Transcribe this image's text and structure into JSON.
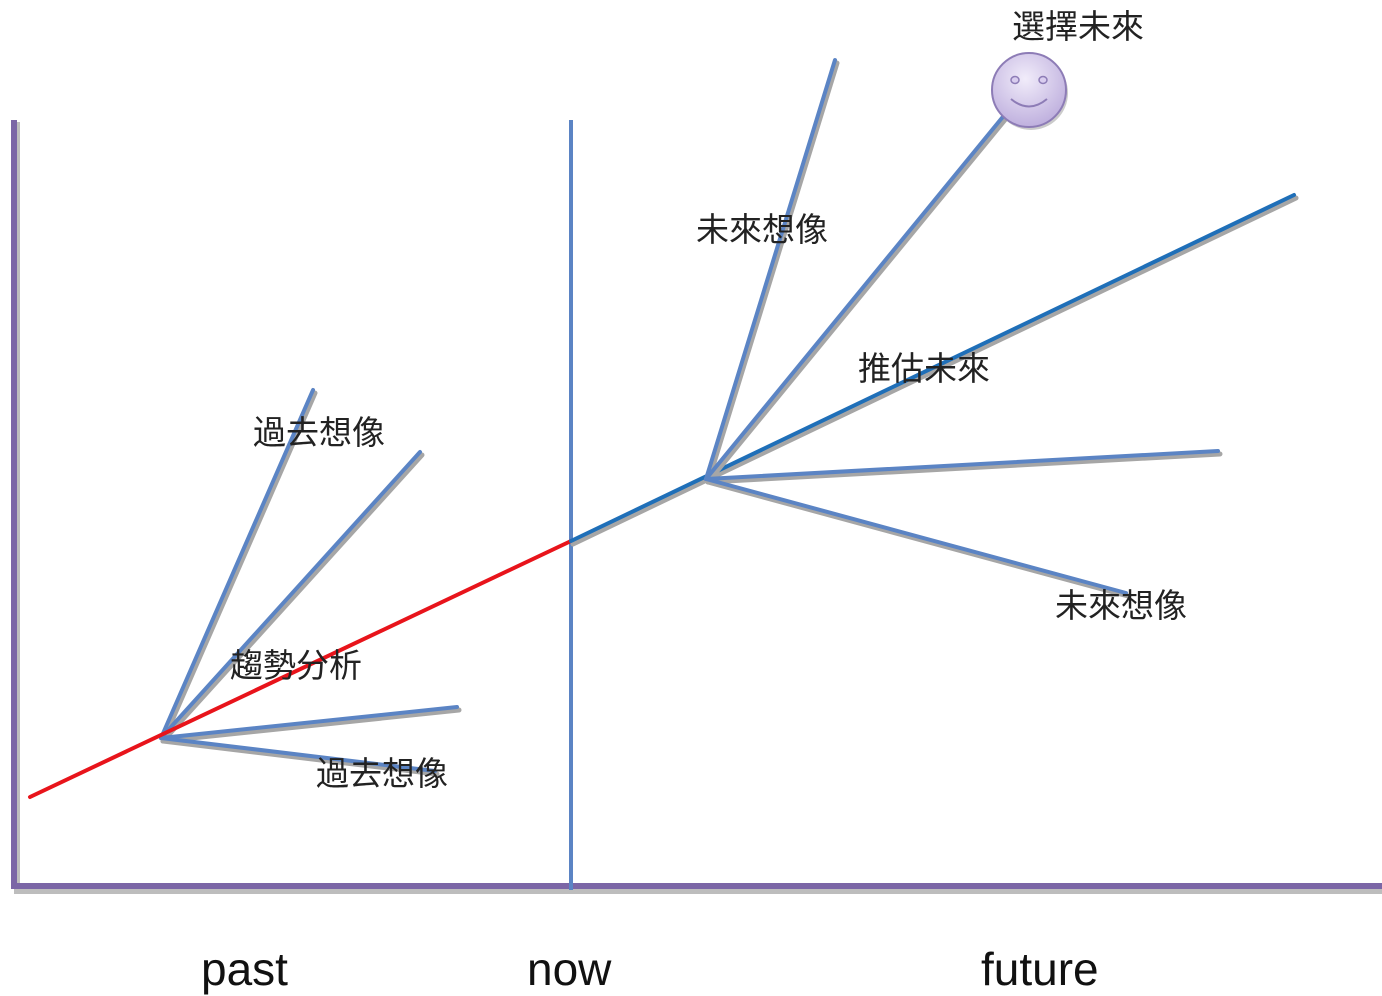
{
  "time_axis": {
    "past": "past",
    "now": "now",
    "future": "future"
  },
  "labels": {
    "chosen_future": "選擇未來",
    "future_image_top": "未來想像",
    "extrapolated_future": "推估未來",
    "future_image_bottom": "未來想像",
    "past_image_top": "過去想像",
    "trend_analysis": "趨勢分析",
    "past_image_bottom": "過去想像"
  },
  "colors": {
    "axis": "#7b66a6",
    "branch": "#5b84c4",
    "branch_shadow": "#a6a6a6",
    "past_trend": "#e8141b",
    "future_trend": "#1f6fb8",
    "smiley_fill": "#d9cdef",
    "smiley_stroke": "#8d7cb6"
  },
  "icons": {
    "smiley": "smiley-face-icon"
  }
}
